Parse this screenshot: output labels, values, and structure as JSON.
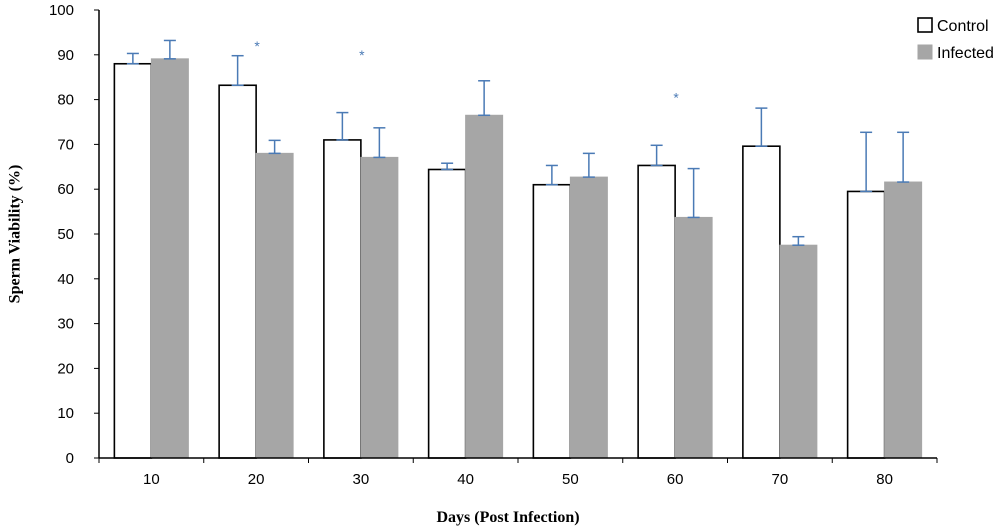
{
  "chart_data": {
    "type": "bar",
    "xlabel": "Days (Post Infection)",
    "ylabel": "Sperm Viability (%)",
    "ylim": [
      0,
      100
    ],
    "yticks": [
      "0",
      "10",
      "20",
      "30",
      "40",
      "50",
      "60",
      "70",
      "80",
      "90",
      "100"
    ],
    "categories": [
      "10",
      "20",
      "30",
      "40",
      "50",
      "60",
      "70",
      "80"
    ],
    "series": [
      {
        "name": "Control",
        "color": "#ffffff",
        "stroke": "#000000",
        "values": [
          88,
          83.2,
          71,
          64.4,
          61,
          65.3,
          69.6,
          59.5
        ],
        "errors": [
          2.3,
          6.6,
          6.1,
          1.4,
          4.3,
          4.5,
          8.5,
          13.2
        ]
      },
      {
        "name": "Infected",
        "color": "#a6a6a6",
        "stroke": "#a6a6a6",
        "values": [
          89.1,
          68,
          67.1,
          76.5,
          62.7,
          53.7,
          47.5,
          61.6
        ],
        "errors": [
          4.1,
          2.9,
          6.6,
          7.7,
          5.3,
          10.9,
          1.9,
          11.1
        ]
      }
    ],
    "annotations": [
      {
        "category": "20",
        "text": "*",
        "y": 92
      },
      {
        "category": "30",
        "text": "*",
        "y": 90
      },
      {
        "category": "60",
        "text": "*",
        "y": 80.5
      }
    ],
    "error_bar_color": "#4a7ab5",
    "legend": {
      "position": "top-right"
    },
    "grid": false
  }
}
